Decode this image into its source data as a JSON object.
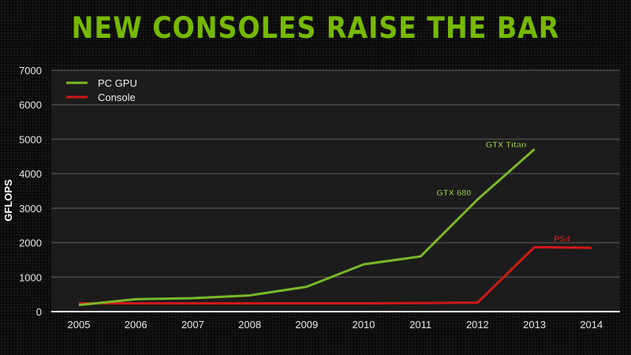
{
  "title": "NEW CONSOLES RAISE THE BAR",
  "colors": {
    "accent": "#76b900",
    "pc_gpu": "#7ab828",
    "console": "#d01818",
    "plot_bg": "#1c1c1c",
    "grid": "#4a4a4a"
  },
  "chart_data": {
    "type": "line",
    "title": "NEW CONSOLES RAISE THE BAR",
    "xlabel": "",
    "ylabel": "GFLOPS",
    "ylim": [
      0,
      7000
    ],
    "yticks": [
      0,
      1000,
      2000,
      3000,
      4000,
      5000,
      6000,
      7000
    ],
    "grid": true,
    "legend_position": "top-left",
    "x": [
      "2005",
      "2006",
      "2007",
      "2008",
      "2009",
      "2010",
      "2011",
      "2012",
      "2013",
      "2014"
    ],
    "series": [
      {
        "name": "PC GPU",
        "color": "#7ab828",
        "values": [
          190,
          360,
          390,
          470,
          720,
          1370,
          1600,
          3250,
          4710,
          null
        ]
      },
      {
        "name": "Console",
        "color": "#d01818",
        "values": [
          240,
          240,
          240,
          240,
          240,
          240,
          250,
          260,
          1870,
          1850
        ]
      }
    ],
    "annotations": [
      {
        "text": "GTX 680",
        "series": "PC GPU",
        "x": "2012",
        "color": "#a6d84a"
      },
      {
        "text": "GTX Titan",
        "series": "PC GPU",
        "x": "2013",
        "color": "#a6d84a"
      },
      {
        "text": "PS4",
        "series": "Console",
        "x": "2013",
        "color": "#e83a3a"
      }
    ]
  }
}
